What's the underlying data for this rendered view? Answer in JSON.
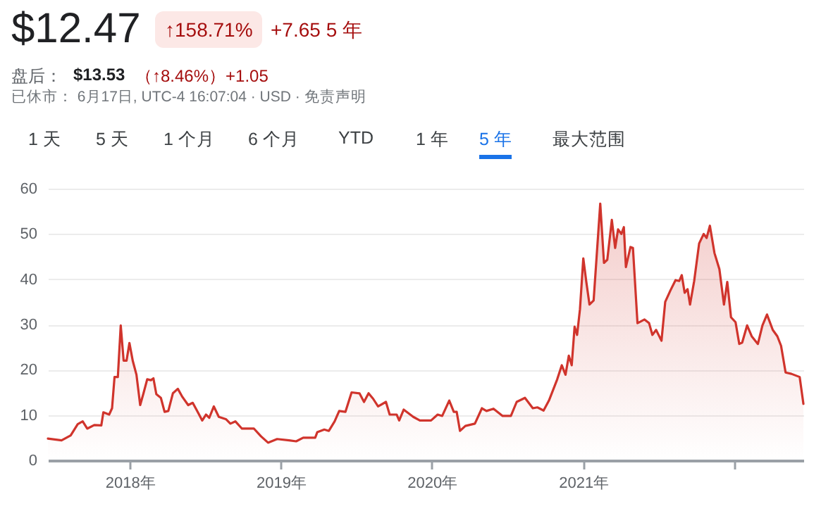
{
  "chart_data": {
    "type": "area",
    "title": "$12.47",
    "annotations": [
      "↑158.71%",
      "+7.65 5 年",
      "盘后：",
      "$13.53",
      "（↑8.46%）+1.05",
      "已休市：  6月17日, UTC-4 16:07:04 · USD · 免责声明",
      "1 天",
      "5 天",
      "1 个月",
      "6 个月",
      "YTD",
      "1 年",
      "5 年",
      "最大范围"
    ],
    "x": [
      "2017-06-17",
      "2017-07-20",
      "2017-08-11",
      "2017-08-28",
      "2017-09-09",
      "2017-09-20",
      "2017-10-07",
      "2017-10-24",
      "2017-10-29",
      "2017-11-12",
      "2017-11-19",
      "2017-11-25",
      "2017-12-03",
      "2017-12-10",
      "2017-12-17",
      "2017-12-24",
      "2017-12-31",
      "2018-01-08",
      "2018-01-17",
      "2018-01-26",
      "2018-02-03",
      "2018-02-12",
      "2018-02-21",
      "2018-02-27",
      "2018-03-06",
      "2018-03-17",
      "2018-03-26",
      "2018-04-04",
      "2018-04-15",
      "2018-04-27",
      "2018-05-08",
      "2018-05-22",
      "2018-06-02",
      "2018-06-14",
      "2018-06-25",
      "2018-07-04",
      "2018-07-12",
      "2018-07-23",
      "2018-08-04",
      "2018-08-21",
      "2018-09-01",
      "2018-09-13",
      "2018-09-29",
      "2018-10-28",
      "2018-11-14",
      "2018-12-01",
      "2018-12-23",
      "2019-01-21",
      "2019-02-07",
      "2019-02-24",
      "2019-03-25",
      "2019-03-30",
      "2019-04-16",
      "2019-04-27",
      "2019-05-11",
      "2019-05-22",
      "2019-06-06",
      "2019-06-21",
      "2019-07-10",
      "2019-07-21",
      "2019-08-01",
      "2019-08-12",
      "2019-08-24",
      "2019-09-12",
      "2019-09-21",
      "2019-10-08",
      "2019-10-14",
      "2019-10-25",
      "2019-11-17",
      "2019-12-03",
      "2019-12-30",
      "2020-01-15",
      "2020-01-26",
      "2020-02-12",
      "2020-02-23",
      "2020-03-01",
      "2020-03-09",
      "2020-03-22",
      "2020-04-14",
      "2020-05-01",
      "2020-05-12",
      "2020-05-29",
      "2020-06-20",
      "2020-07-10",
      "2020-07-24",
      "2020-08-13",
      "2020-09-01",
      "2020-09-12",
      "2020-09-27",
      "2020-10-10",
      "2020-10-30",
      "2020-11-10",
      "2020-11-19",
      "2020-11-27",
      "2020-12-04",
      "2020-12-11",
      "2020-12-17",
      "2020-12-24",
      "2021-01-01",
      "2021-01-08",
      "2021-01-16",
      "2021-01-26",
      "2021-02-11",
      "2021-02-20",
      "2021-02-28",
      "2021-03-11",
      "2021-03-19",
      "2021-03-26",
      "2021-04-03",
      "2021-04-09",
      "2021-04-14",
      "2021-04-25",
      "2021-05-01",
      "2021-05-12",
      "2021-05-29",
      "2021-06-09",
      "2021-06-17",
      "2021-06-26",
      "2021-07-09",
      "2021-07-18",
      "2021-07-31",
      "2021-08-12",
      "2021-08-21",
      "2021-08-27",
      "2021-09-03",
      "2021-09-10",
      "2021-09-16",
      "2021-09-26",
      "2021-10-08",
      "2021-10-19",
      "2021-10-26",
      "2021-11-03",
      "2021-11-14",
      "2021-11-26",
      "2021-12-07",
      "2021-12-15",
      "2021-12-24",
      "2022-01-04",
      "2022-01-13",
      "2022-01-20",
      "2022-02-01",
      "2022-02-12",
      "2022-02-27",
      "2022-03-10",
      "2022-03-21",
      "2022-04-04",
      "2022-04-15",
      "2022-04-24",
      "2022-05-05",
      "2022-05-19",
      "2022-06-08",
      "2022-06-17"
    ],
    "series": [
      {
        "color": "#d0342c",
        "values": [
          4.8,
          4.4,
          5.5,
          8,
          8.6,
          7,
          7.8,
          7.7,
          10.6,
          10.1,
          11.5,
          18.4,
          18.4,
          29.8,
          22,
          22,
          25.9,
          22,
          18.9,
          12.2,
          14.8,
          17.9,
          17.7,
          18.1,
          14.6,
          13.8,
          10.7,
          10.9,
          14.8,
          15.8,
          14,
          12.2,
          12.7,
          10.7,
          8.8,
          10.1,
          9.4,
          11.9,
          9.6,
          9.1,
          8.1,
          8.6,
          7,
          7,
          5.3,
          3.9,
          4.7,
          4.4,
          4.2,
          5,
          5,
          6.2,
          6.8,
          6.5,
          8.6,
          10.9,
          10.7,
          15,
          14.8,
          12.9,
          14.8,
          13.6,
          11.9,
          12.9,
          10.1,
          10.1,
          8.8,
          11.2,
          9.6,
          8.8,
          8.8,
          10.1,
          9.8,
          13.2,
          10.7,
          10.7,
          6.5,
          7.6,
          8.1,
          11.5,
          10.9,
          11.4,
          9.8,
          9.8,
          12.9,
          13.8,
          11.5,
          11.7,
          11,
          13.2,
          17.9,
          21,
          18.9,
          23.1,
          21,
          29.5,
          27.7,
          33.4,
          44.6,
          39.6,
          34.4,
          35.3,
          56.7,
          43.6,
          44.3,
          53.1,
          46.9,
          51,
          50,
          51.5,
          42.7,
          47.1,
          46.9,
          30.3,
          31.1,
          30.3,
          27.7,
          28.8,
          26.4,
          35,
          37.6,
          39.8,
          39.6,
          40.9,
          37,
          37.8,
          34.4,
          39.6,
          47.9,
          50,
          49.1,
          51.8,
          45.8,
          42.2,
          34.4,
          39.4,
          31.6,
          30.5,
          25.7,
          26,
          29.8,
          27.4,
          25.7,
          29.8,
          32.2,
          28.8,
          27.4,
          25.3,
          19.4,
          19.1,
          18.4,
          12.47
        ]
      }
    ],
    "xlim": [
      "2017-06-17",
      "2022-06-17"
    ],
    "xticks": [
      {
        "value": "2018",
        "label": "2018年"
      },
      {
        "value": "2019",
        "label": "2019年"
      },
      {
        "value": "2020",
        "label": "2020年"
      },
      {
        "value": "2021",
        "label": "2021年"
      },
      {
        "value": "2022",
        "label": null
      }
    ],
    "ylim": [
      0,
      60
    ],
    "yticks": [
      0,
      10,
      20,
      30,
      40,
      50,
      60
    ],
    "grid": "y"
  }
}
